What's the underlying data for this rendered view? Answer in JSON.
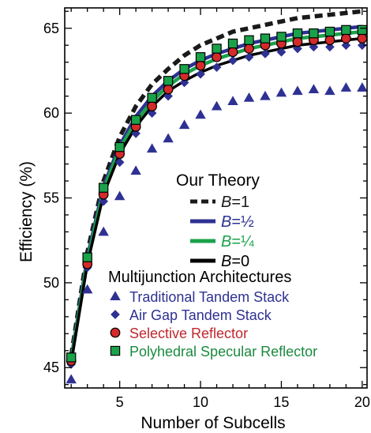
{
  "chart_data": {
    "type": "line",
    "title": "",
    "xlabel": "Number of Subcells",
    "ylabel": "Efficiency (%)",
    "xlim": [
      1.6,
      20.3
    ],
    "ylim": [
      43.8,
      66.2
    ],
    "x_ticks": [
      5,
      10,
      15,
      20
    ],
    "y_ticks": [
      45,
      50,
      55,
      60,
      65
    ],
    "grid": false,
    "legend_position": "center-right",
    "theory_legend_title": "Our Theory",
    "marker_legend_title": "Multijunction Architectures",
    "x": [
      2,
      3,
      4,
      5,
      6,
      7,
      8,
      9,
      10,
      11,
      12,
      13,
      14,
      15,
      16,
      17,
      18,
      19,
      20
    ],
    "theory_lines": [
      {
        "label": "B=1",
        "var": "B",
        "val": "=1",
        "color": "#1a1a1a",
        "label_color": "#1a1a1a",
        "dash": "10,6",
        "values": [
          45.7,
          51.8,
          56.0,
          58.6,
          60.4,
          61.7,
          62.6,
          63.4,
          64.0,
          64.4,
          64.8,
          65.0,
          65.2,
          65.4,
          65.6,
          65.7,
          65.8,
          65.9,
          66.0
        ]
      },
      {
        "label": "B=½",
        "var": "B",
        "val": "=½",
        "color": "#2e3192",
        "label_color": "#2e3192",
        "dash": "",
        "values": [
          45.5,
          51.5,
          55.7,
          58.1,
          59.8,
          61.0,
          61.9,
          62.6,
          63.1,
          63.5,
          63.8,
          64.1,
          64.3,
          64.5,
          64.7,
          64.8,
          64.9,
          65.0,
          65.1
        ]
      },
      {
        "label": "B=¼",
        "var": "B",
        "val": "=¼",
        "color": "#1aa24a",
        "label_color": "#1aa24a",
        "dash": "",
        "values": [
          45.4,
          51.3,
          55.5,
          57.9,
          59.5,
          60.7,
          61.6,
          62.3,
          62.8,
          63.2,
          63.5,
          63.8,
          64.0,
          64.2,
          64.4,
          64.5,
          64.6,
          64.7,
          64.8
        ]
      },
      {
        "label": "B=0",
        "var": "B",
        "val": "=0",
        "color": "#000000",
        "label_color": "#000000",
        "dash": "",
        "values": [
          45.3,
          51.1,
          55.2,
          57.6,
          59.2,
          60.4,
          61.3,
          61.9,
          62.4,
          62.8,
          63.1,
          63.4,
          63.6,
          63.8,
          64.0,
          64.1,
          64.2,
          64.3,
          64.4
        ]
      }
    ],
    "marker_series": [
      {
        "name": "Traditional Tandem Stack",
        "marker": "triangle",
        "color": "#2e3192",
        "text_color": "#2e3192",
        "values": [
          44.3,
          49.6,
          53.0,
          55.1,
          56.6,
          57.9,
          58.5,
          59.3,
          59.9,
          60.4,
          60.7,
          60.9,
          61.0,
          61.2,
          61.3,
          61.4,
          61.3,
          61.5,
          61.5
        ]
      },
      {
        "name": "Air Gap Tandem Stack",
        "marker": "diamond",
        "color": "#2e3192",
        "text_color": "#2e3192",
        "values": [
          45.2,
          50.9,
          54.8,
          57.1,
          58.8,
          60.0,
          61.0,
          61.8,
          62.3,
          62.7,
          63.1,
          63.3,
          63.5,
          63.6,
          63.8,
          63.9,
          63.9,
          64.0,
          64.0
        ]
      },
      {
        "name": "Selective Reflector",
        "marker": "circle",
        "color": "#d42a2a",
        "text_color": "#c1272d",
        "values": [
          45.4,
          51.1,
          55.2,
          57.6,
          59.2,
          60.4,
          61.4,
          62.2,
          62.8,
          63.3,
          63.6,
          63.8,
          64.0,
          64.1,
          64.2,
          64.3,
          64.3,
          64.4,
          64.4
        ]
      },
      {
        "name": "Polyhedral Specular Reflector",
        "marker": "square",
        "color": "#1aa24a",
        "text_color": "#1a8a3e",
        "values": [
          45.6,
          51.5,
          55.6,
          58.0,
          59.6,
          60.9,
          61.9,
          62.6,
          63.3,
          63.8,
          64.1,
          64.3,
          64.4,
          64.5,
          64.7,
          64.7,
          64.8,
          64.9,
          64.9
        ]
      }
    ]
  }
}
